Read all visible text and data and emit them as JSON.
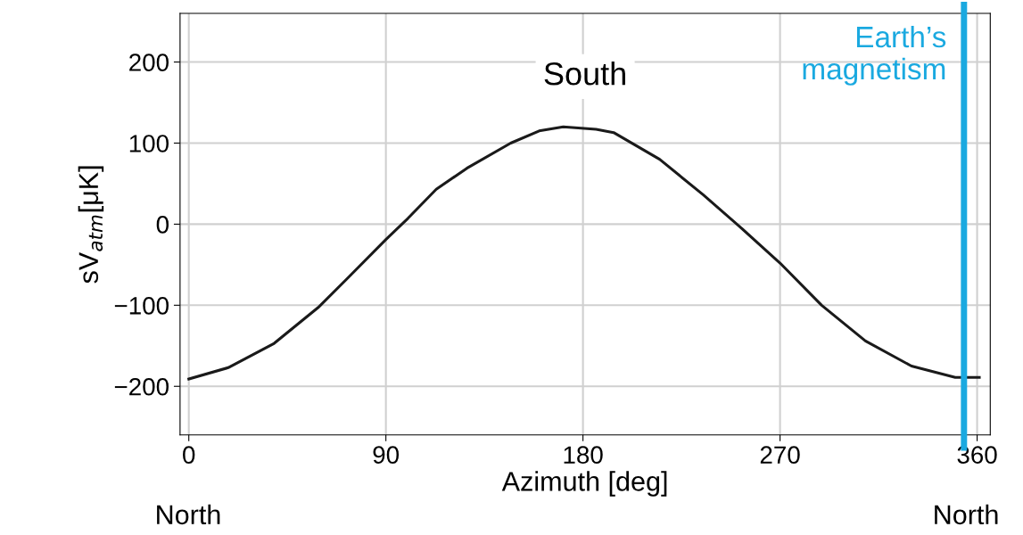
{
  "chart_data": {
    "type": "line",
    "xlabel": "Azimuth [deg]",
    "ylabel": "sV$_{atm}$[μK]",
    "x": [
      0,
      18,
      39,
      59,
      72,
      90,
      100,
      113,
      127,
      147,
      160,
      171,
      186,
      194,
      215,
      235,
      252,
      270,
      289,
      309,
      330,
      350,
      361
    ],
    "series": [
      {
        "color": "#1a1a1a",
        "values": [
          -191,
          -177,
          -147,
          -103,
          -68,
          -19,
          7,
          43,
          69,
          100,
          115,
          120,
          117,
          113,
          80,
          36,
          -4,
          -48,
          -100,
          -144,
          -175,
          -189,
          -189
        ]
      }
    ],
    "xlim": [
      -4,
      366
    ],
    "ylim": [
      -260,
      260
    ],
    "xticks": [
      0,
      90,
      180,
      270,
      360
    ],
    "yticks": [
      {
        "value": -200,
        "label": "−200"
      },
      {
        "value": -100,
        "label": "−100"
      },
      0,
      100,
      200
    ],
    "grid": true,
    "marker": "none",
    "line_style": "solid",
    "ref_lines": [
      {
        "axis": "x",
        "value": 354,
        "label": "Earth’s\nmagnetism",
        "color": "#1aa9e0"
      }
    ],
    "annotations": [
      "South",
      "North",
      "North"
    ]
  }
}
